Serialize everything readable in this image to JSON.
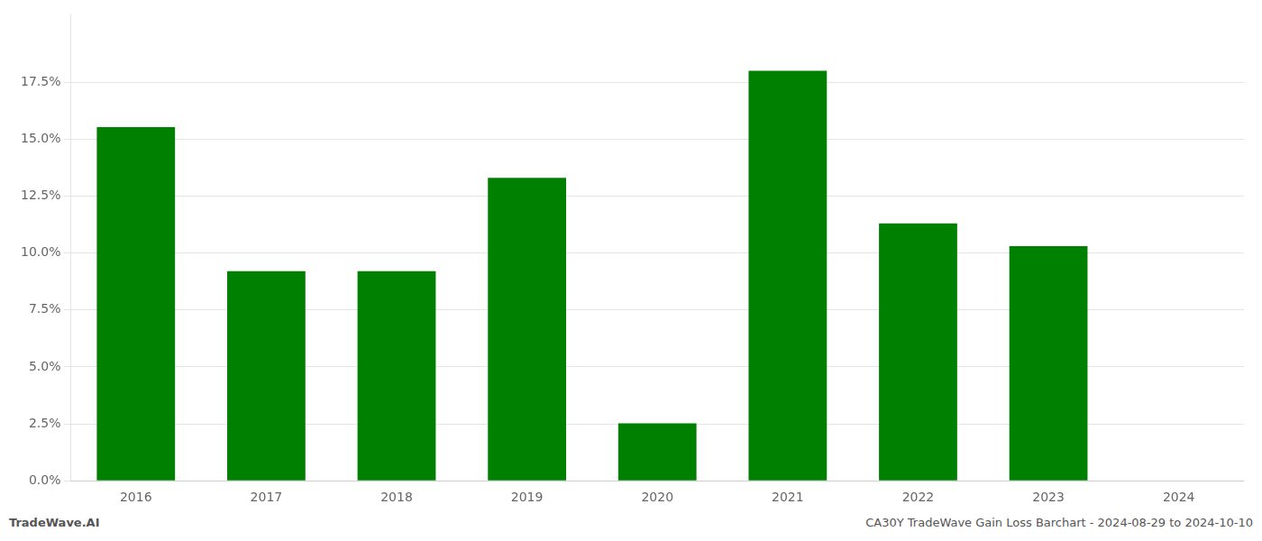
{
  "chart_data": {
    "type": "bar",
    "categories": [
      "2016",
      "2017",
      "2018",
      "2019",
      "2020",
      "2021",
      "2022",
      "2023",
      "2024"
    ],
    "values": [
      0.1553,
      0.092,
      0.092,
      0.133,
      0.0252,
      0.18,
      0.113,
      0.103,
      0.0
    ],
    "color": "#008000",
    "ylim": [
      0,
      0.205
    ],
    "yticks": [
      {
        "value": 0.0,
        "label": "0.0%"
      },
      {
        "value": 0.025,
        "label": "2.5%"
      },
      {
        "value": 0.05,
        "label": "5.0%"
      },
      {
        "value": 0.075,
        "label": "7.5%"
      },
      {
        "value": 0.1,
        "label": "10.0%"
      },
      {
        "value": 0.125,
        "label": "12.5%"
      },
      {
        "value": 0.15,
        "label": "15.0%"
      },
      {
        "value": 0.175,
        "label": "17.5%"
      }
    ],
    "grid": true,
    "annotations": [
      "TradeWave.AI",
      "CA30Y TradeWave Gain Loss Barchart - 2024-08-29 to 2024-10-10"
    ]
  }
}
